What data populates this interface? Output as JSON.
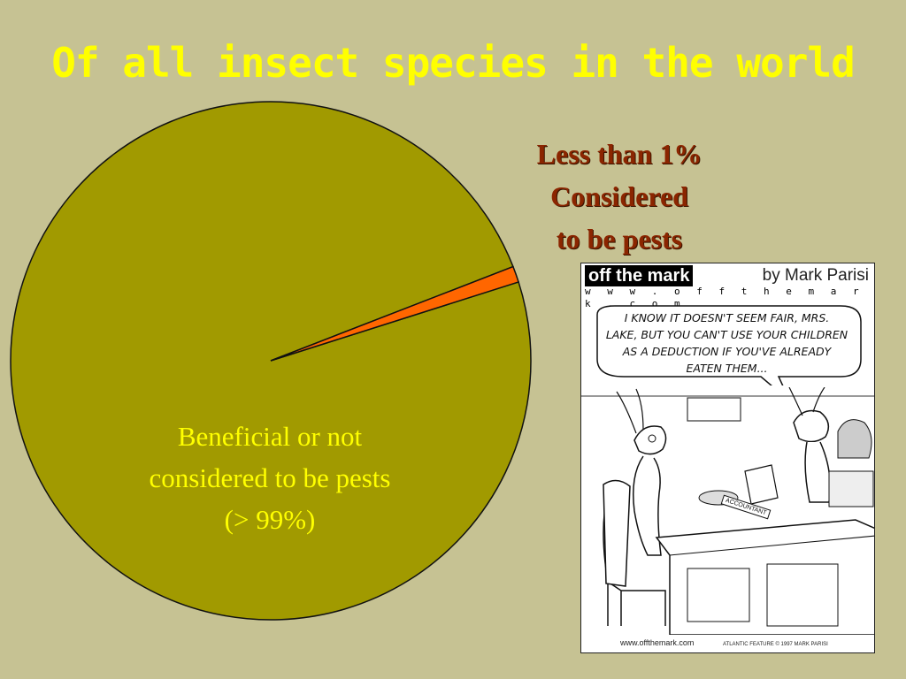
{
  "title": "Of all insect species in the world",
  "colors": {
    "background": "#c6c293",
    "title": "#ffff00",
    "main_slice": "#a19a00",
    "pest_slice": "#ff6600",
    "pest_label": "#8b2500"
  },
  "chart_data": {
    "type": "pie",
    "slices": [
      {
        "label": "Beneficial or not considered to be pests (> 99%)",
        "value": 99,
        "color": "#a19a00"
      },
      {
        "label": "Less than 1% Considered to be pests",
        "value": 1,
        "color": "#ff6600"
      }
    ]
  },
  "labels": {
    "pests_lines": [
      "Less than 1%",
      "Considered",
      "to be pests"
    ],
    "beneficial_lines": [
      "Beneficial or not",
      "considered to be pests",
      "(> 99%)"
    ]
  },
  "comic": {
    "logo": "off the mark",
    "author": "by Mark Parisi",
    "url": "w w w . o f f t h e m a r k . c o m",
    "caption_lines": [
      "I KNOW IT DOESN'T SEEM FAIR, MRS.",
      "LAKE, BUT YOU CAN'T USE YOUR CHILDREN",
      "AS A DEDUCTION IF YOU'VE ALREADY",
      "EATEN THEM..."
    ],
    "desk_sign": "ACCOUNTANT",
    "footer_url": "www.offthemark.com",
    "footer_credit": "ATLANTIC FEATURE © 1997 MARK PARISI"
  }
}
